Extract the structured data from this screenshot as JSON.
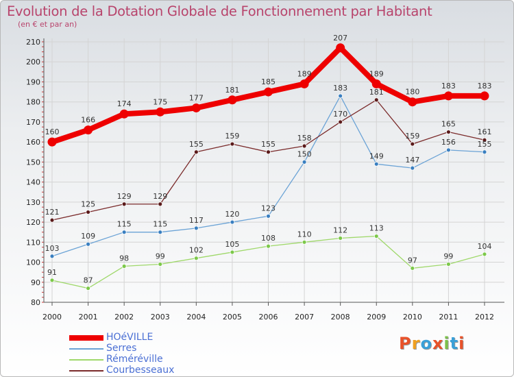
{
  "header": {
    "title": "Evolution de la Dotation Globale de Fonctionnement par Habitant",
    "subtitle": "(en € et par an)"
  },
  "logo": {
    "text": "Proxiti",
    "colors": [
      "#e8522a",
      "#f0a020",
      "#3aa0d8",
      "#e8522a",
      "#7cc04a",
      "#3aa0d8",
      "#e8522a"
    ]
  },
  "colors": {
    "title": "#b8446c",
    "legend_text": "#4a6fd4",
    "axis": "#555555",
    "grid": "#d4d4d4",
    "tick_minor": "#cc3333"
  },
  "chart_data": {
    "type": "line",
    "title": "Evolution de la Dotation Globale de Fonctionnement par Habitant",
    "subtitle": "(en € et par an)",
    "x": [
      "2000",
      "2001",
      "2002",
      "2003",
      "2004",
      "2005",
      "2006",
      "2007",
      "2008",
      "2009",
      "2010",
      "2011",
      "2012"
    ],
    "ylim": [
      80,
      210
    ],
    "yticks": [
      80,
      90,
      100,
      110,
      120,
      130,
      140,
      150,
      160,
      170,
      180,
      190,
      200,
      210
    ],
    "grid": true,
    "legend_position": "bottom-left",
    "series": [
      {
        "name": "HOéVILLE",
        "values": [
          160,
          166,
          174,
          175,
          177,
          181,
          185,
          189,
          207,
          189,
          180,
          183,
          183
        ],
        "color": "#ee0000",
        "marker": "#ee0000",
        "width": 8,
        "labels": true
      },
      {
        "name": "Serres",
        "values": [
          103,
          109,
          115,
          115,
          117,
          120,
          123,
          150,
          183,
          149,
          147,
          156,
          155
        ],
        "color": "#6ba3d6",
        "marker": "#3a7fc0",
        "width": 1.3,
        "labels": true
      },
      {
        "name": "Réméréville",
        "values": [
          91,
          87,
          98,
          99,
          102,
          105,
          108,
          110,
          112,
          113,
          97,
          99,
          104
        ],
        "color": "#9fd86a",
        "marker": "#7cc84a",
        "width": 1.3,
        "labels": true
      },
      {
        "name": "Courbesseaux",
        "values": [
          121,
          125,
          129,
          129,
          155,
          159,
          155,
          158,
          170,
          181,
          159,
          165,
          161
        ],
        "color": "#7a2a2a",
        "marker": "#5a1a1a",
        "width": 1.3,
        "labels": true
      }
    ]
  }
}
